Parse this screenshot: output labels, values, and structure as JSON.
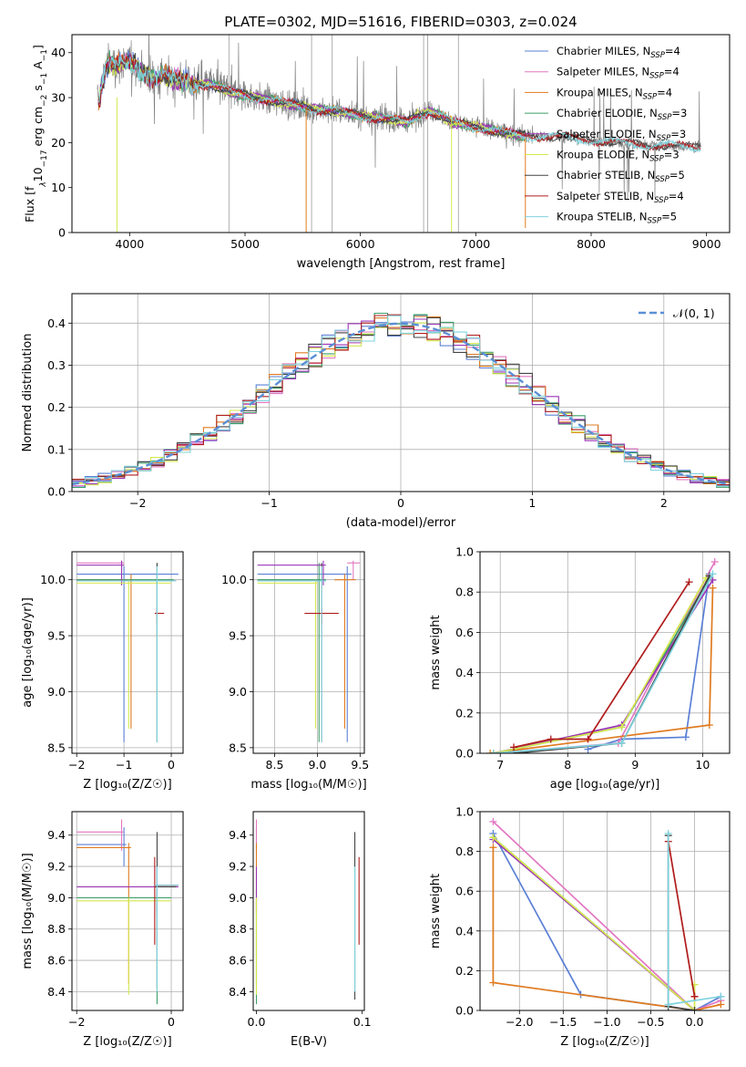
{
  "figure_title": "PLATE=0302, MJD=51616, FIBERID=0303, z=0.024",
  "colors": {
    "Chabrier MILES": "#5b80d6",
    "Salpeter MILES": "#e377c2",
    "Kroupa MILES": "#e07b20",
    "Chabrier ELODIE": "#3f9e6a",
    "Salpeter ELODIE": "#9a35b5",
    "Kroupa ELODIE": "#d4e84e",
    "Chabrier STELIB": "#444444",
    "Salpeter STELIB": "#b01c1c",
    "Kroupa STELIB": "#7ed3de",
    "data": "#808080",
    "normal": "#5b8fd6"
  },
  "chart_data": [
    {
      "id": "spectrum",
      "type": "line",
      "xlabel": "wavelength [Angstrom, rest frame]",
      "ylabel_parts": {
        "pre": "Flux [f",
        "sub1": "λ",
        "mid": "10",
        "sup1": "−17",
        "post1": " erg cm",
        "sup2": "−2",
        "post2": " s",
        "sup3": "−1",
        "post3": " A",
        "sup4": "−1",
        "end": "]"
      },
      "xlim": [
        3500,
        9200
      ],
      "ylim": [
        0,
        44
      ],
      "xticks": [
        4000,
        5000,
        6000,
        7000,
        8000,
        9000
      ],
      "yticks": [
        0,
        10,
        20,
        30,
        40
      ],
      "grid": false,
      "legend_position": "top-right",
      "legend": [
        {
          "model": "Chabrier MILES",
          "n": "4"
        },
        {
          "model": "Salpeter MILES",
          "n": "4"
        },
        {
          "model": "Kroupa MILES",
          "n": "4"
        },
        {
          "model": "Chabrier ELODIE",
          "n": "3"
        },
        {
          "model": "Salpeter ELODIE",
          "n": "3"
        },
        {
          "model": "Kroupa ELODIE",
          "n": "3"
        },
        {
          "model": "Chabrier STELIB",
          "n": "5"
        },
        {
          "model": "Salpeter STELIB",
          "n": "4"
        },
        {
          "model": "Kroupa STELIB",
          "n": "5"
        }
      ],
      "continuum": {
        "x": [
          3730,
          3800,
          3900,
          4000,
          4100,
          4200,
          4300,
          4400,
          4500,
          4600,
          4700,
          4800,
          4900,
          5000,
          5100,
          5200,
          5300,
          5400,
          5500,
          5600,
          5800,
          6000,
          6200,
          6400,
          6500,
          6600,
          6700,
          6800,
          6900,
          7000,
          7200,
          7400,
          7600,
          7800,
          8000,
          8200,
          8400,
          8600,
          8800,
          8950
        ],
        "y": [
          29,
          37.5,
          37.5,
          38,
          36,
          34,
          35,
          34,
          33.5,
          33,
          33,
          32,
          31,
          30.5,
          30,
          29.5,
          29,
          28.5,
          28,
          27.5,
          27,
          26,
          25.5,
          24.5,
          26,
          27,
          26,
          24.5,
          24,
          23.5,
          22.5,
          21.5,
          21.5,
          21,
          20.5,
          20,
          19.5,
          19.5,
          19,
          19
        ]
      }
    },
    {
      "id": "residuals",
      "type": "line",
      "xlabel": "(data-model)/error",
      "ylabel": "Normed distribution",
      "xlim": [
        -2.5,
        2.5
      ],
      "ylim": [
        0,
        0.47
      ],
      "xticks": [
        -2,
        -1,
        0,
        1,
        2
      ],
      "yticks": [
        0.0,
        0.1,
        0.2,
        0.3,
        0.4
      ],
      "grid": true,
      "legend_position": "top-right",
      "legend_label": "𝒩(0, 1)"
    },
    {
      "id": "age-vs-Z",
      "type": "scatter",
      "xlabel": "Z [log₁₀(Z/Z☉)]",
      "ylabel": "age  [log₁₀(age/yr)]",
      "xlim": [
        -2.1,
        0.25
      ],
      "ylim": [
        8.45,
        10.25
      ],
      "xticks": [
        -2,
        -1,
        0
      ],
      "yticks": [
        8.5,
        9.0,
        9.5,
        10.0
      ],
      "grid": true,
      "points": [
        {
          "m": "Chabrier MILES",
          "x": -1.0,
          "xlo": -2.0,
          "xhi": 0.15,
          "y": 10.05,
          "ylo": 8.55,
          "yhi": 10.12
        },
        {
          "m": "Salpeter MILES",
          "x": -1.05,
          "xlo": -2.0,
          "xhi": -1.0,
          "y": 10.15,
          "ylo": 10.0,
          "yhi": 10.17
        },
        {
          "m": "Kroupa MILES",
          "x": -0.85,
          "xlo": -2.0,
          "xhi": -0.8,
          "y": 10.0,
          "ylo": 8.67,
          "yhi": 10.05
        },
        {
          "m": "Chabrier ELODIE",
          "x": -0.3,
          "xlo": -2.0,
          "xhi": 0.05,
          "y": 10.0,
          "ylo": 8.55,
          "yhi": 10.15
        },
        {
          "m": "Salpeter ELODIE",
          "x": -1.05,
          "xlo": -2.0,
          "xhi": -1.0,
          "y": 10.13,
          "ylo": 9.95,
          "yhi": 10.17
        },
        {
          "m": "Kroupa ELODIE",
          "x": -0.9,
          "xlo": -2.0,
          "xhi": 0.0,
          "y": 9.97,
          "ylo": 8.67,
          "yhi": 10.0
        },
        {
          "m": "Chabrier STELIB",
          "x": -0.3,
          "xlo": -2.0,
          "xhi": 0.1,
          "y": 9.99,
          "ylo": 8.55,
          "yhi": 10.15
        },
        {
          "m": "Salpeter STELIB",
          "x": -0.3,
          "xlo": -0.35,
          "xhi": -0.15,
          "y": 9.7,
          "ylo": 9.6,
          "yhi": 9.75
        },
        {
          "m": "Kroupa STELIB",
          "x": -0.3,
          "xlo": -2.0,
          "xhi": 0.1,
          "y": 9.99,
          "ylo": 8.55,
          "yhi": 10.12
        }
      ]
    },
    {
      "id": "age-vs-mass",
      "type": "scatter",
      "xlabel": "mass [log₁₀(M/M☉)]",
      "ylabel": "",
      "xlim": [
        8.25,
        9.55
      ],
      "ylim": [
        8.45,
        10.25
      ],
      "xticks": [
        8.5,
        9.0,
        9.5
      ],
      "yticks": [
        8.5,
        9.0,
        9.5,
        10.0
      ],
      "grid": true,
      "points": [
        {
          "m": "Chabrier MILES",
          "x": 9.35,
          "xlo": 8.3,
          "xhi": 9.4,
          "y": 10.05,
          "ylo": 8.55,
          "yhi": 10.12
        },
        {
          "m": "Salpeter MILES",
          "x": 9.42,
          "xlo": 9.35,
          "xhi": 9.5,
          "y": 10.15,
          "ylo": 10.0,
          "yhi": 10.17
        },
        {
          "m": "Kroupa MILES",
          "x": 9.32,
          "xlo": 9.2,
          "xhi": 9.45,
          "y": 10.0,
          "ylo": 8.67,
          "yhi": 10.05
        },
        {
          "m": "Chabrier ELODIE",
          "x": 9.02,
          "xlo": 8.3,
          "xhi": 9.1,
          "y": 10.0,
          "ylo": 8.55,
          "yhi": 10.15
        },
        {
          "m": "Salpeter ELODIE",
          "x": 9.07,
          "xlo": 8.3,
          "xhi": 9.1,
          "y": 10.13,
          "ylo": 9.95,
          "yhi": 10.17
        },
        {
          "m": "Kroupa ELODIE",
          "x": 8.98,
          "xlo": 8.3,
          "xhi": 9.0,
          "y": 9.97,
          "ylo": 8.67,
          "yhi": 10.0
        },
        {
          "m": "Chabrier STELIB",
          "x": 9.05,
          "xlo": 8.3,
          "xhi": 9.1,
          "y": 9.99,
          "ylo": 8.55,
          "yhi": 10.15
        },
        {
          "m": "Salpeter STELIB",
          "x": 9.05,
          "xlo": 8.85,
          "xhi": 9.25,
          "y": 9.7,
          "ylo": 9.6,
          "yhi": 9.75
        },
        {
          "m": "Kroupa STELIB",
          "x": 9.05,
          "xlo": 8.3,
          "xhi": 9.1,
          "y": 9.99,
          "ylo": 8.55,
          "yhi": 10.12
        }
      ]
    },
    {
      "id": "weight-vs-age",
      "type": "line",
      "xlabel": "age  [log₁₀(age/yr)]",
      "ylabel": "mass weight",
      "xlim": [
        6.7,
        10.4
      ],
      "ylim": [
        0,
        1.0
      ],
      "xticks": [
        7,
        8,
        9,
        10
      ],
      "yticks": [
        0.0,
        0.2,
        0.4,
        0.6,
        0.8,
        1.0
      ],
      "grid": true,
      "series": [
        {
          "m": "Chabrier MILES",
          "x": [
            8.3,
            8.8,
            9.75,
            10.1
          ],
          "y": [
            0.02,
            0.07,
            0.08,
            0.89
          ]
        },
        {
          "m": "Salpeter MILES",
          "x": [
            6.9,
            8.75,
            10.18
          ],
          "y": [
            0.0,
            0.05,
            0.95
          ]
        },
        {
          "m": "Kroupa MILES",
          "x": [
            6.85,
            10.1,
            10.15
          ],
          "y": [
            0.0,
            0.14,
            0.82
          ]
        },
        {
          "m": "Chabrier ELODIE",
          "x": [
            6.9,
            8.8,
            10.1
          ],
          "y": [
            0.0,
            0.13,
            0.87
          ]
        },
        {
          "m": "Salpeter ELODIE",
          "x": [
            6.9,
            8.8,
            10.15
          ],
          "y": [
            0.0,
            0.14,
            0.86
          ]
        },
        {
          "m": "Kroupa ELODIE",
          "x": [
            6.9,
            8.8,
            10.05
          ],
          "y": [
            0.0,
            0.13,
            0.87
          ]
        },
        {
          "m": "Chabrier STELIB",
          "x": [
            7.2,
            8.8,
            10.1
          ],
          "y": [
            0.0,
            0.05,
            0.88
          ]
        },
        {
          "m": "Salpeter STELIB",
          "x": [
            7.2,
            7.75,
            8.3,
            9.8
          ],
          "y": [
            0.03,
            0.07,
            0.07,
            0.85
          ]
        },
        {
          "m": "Kroupa STELIB",
          "x": [
            6.9,
            8.8,
            10.15
          ],
          "y": [
            0.0,
            0.05,
            0.89
          ]
        }
      ]
    },
    {
      "id": "mass-vs-Z",
      "type": "scatter",
      "xlabel": "Z [log₁₀(Z/Z☉)]",
      "ylabel": "mass [log₁₀(M/M☉)]",
      "xlim": [
        -2.1,
        0.25
      ],
      "ylim": [
        8.28,
        9.55
      ],
      "xticks": [
        -2,
        0
      ],
      "yticks": [
        8.4,
        8.6,
        8.8,
        9.0,
        9.2,
        9.4
      ],
      "grid": true,
      "points": [
        {
          "m": "Chabrier MILES",
          "x": -1.0,
          "xlo": -2.0,
          "xhi": -0.95,
          "y": 9.34,
          "ylo": 9.2,
          "yhi": 9.45
        },
        {
          "m": "Salpeter MILES",
          "x": -1.05,
          "xlo": -2.0,
          "xhi": -1.0,
          "y": 9.42,
          "ylo": 9.3,
          "yhi": 9.5
        },
        {
          "m": "Kroupa MILES",
          "x": -0.9,
          "xlo": -2.0,
          "xhi": -0.85,
          "y": 9.32,
          "ylo": 8.45,
          "yhi": 9.35
        },
        {
          "m": "Chabrier ELODIE",
          "x": -0.3,
          "xlo": -2.0,
          "xhi": 0.0,
          "y": 9.0,
          "ylo": 8.32,
          "yhi": 9.05
        },
        {
          "m": "Salpeter ELODIE",
          "x": -0.3,
          "xlo": -2.0,
          "xhi": 0.15,
          "y": 9.07,
          "ylo": 8.9,
          "yhi": 9.2
        },
        {
          "m": "Kroupa ELODIE",
          "x": -0.9,
          "xlo": -2.0,
          "xhi": 0.0,
          "y": 8.98,
          "ylo": 8.38,
          "yhi": 9.0
        },
        {
          "m": "Chabrier STELIB",
          "x": -0.3,
          "xlo": -0.35,
          "xhi": 0.1,
          "y": 9.07,
          "ylo": 8.42,
          "yhi": 9.42
        },
        {
          "m": "Salpeter STELIB",
          "x": -0.35,
          "xlo": -0.35,
          "xhi": 0.15,
          "y": 9.08,
          "ylo": 8.7,
          "yhi": 9.26
        },
        {
          "m": "Kroupa STELIB",
          "x": -0.3,
          "xlo": -0.35,
          "xhi": 0.15,
          "y": 9.08,
          "ylo": 8.4,
          "yhi": 9.2
        }
      ]
    },
    {
      "id": "mass-vs-EBV",
      "type": "scatter",
      "xlabel": "E(B-V)",
      "ylabel": "",
      "xlim": [
        -0.003,
        0.102
      ],
      "ylim": [
        8.28,
        9.55
      ],
      "xticks": [
        0.0,
        0.1
      ],
      "yticks": [
        8.4,
        8.6,
        8.8,
        9.0,
        9.2,
        9.4
      ],
      "grid": false,
      "points": [
        {
          "m": "Chabrier MILES",
          "x": 0.0,
          "y": 9.34,
          "ylo": 9.2,
          "yhi": 9.45
        },
        {
          "m": "Salpeter MILES",
          "x": 0.0,
          "y": 9.42,
          "ylo": 9.3,
          "yhi": 9.5
        },
        {
          "m": "Kroupa MILES",
          "x": 0.0,
          "y": 9.32,
          "ylo": 8.45,
          "yhi": 9.35
        },
        {
          "m": "Chabrier ELODIE",
          "x": 0.0,
          "y": 9.0,
          "ylo": 8.32,
          "yhi": 9.05
        },
        {
          "m": "Salpeter ELODIE",
          "x": 0.0,
          "y": 9.07,
          "ylo": 8.9,
          "yhi": 9.2
        },
        {
          "m": "Kroupa ELODIE",
          "x": 0.0,
          "y": 8.98,
          "ylo": 8.38,
          "yhi": 9.0
        },
        {
          "m": "Chabrier STELIB",
          "x": 0.093,
          "y": 9.07,
          "ylo": 8.35,
          "yhi": 9.42
        },
        {
          "m": "Salpeter STELIB",
          "x": 0.097,
          "y": 9.08,
          "ylo": 8.7,
          "yhi": 9.26
        },
        {
          "m": "Kroupa STELIB",
          "x": 0.093,
          "y": 9.08,
          "ylo": 8.4,
          "yhi": 9.2
        }
      ]
    },
    {
      "id": "weight-vs-Z",
      "type": "line",
      "xlabel": "Z [log₁₀(Z/Z☉)]",
      "ylabel": "mass weight",
      "xlim": [
        -2.45,
        0.4
      ],
      "ylim": [
        0,
        1.0
      ],
      "xticks": [
        -2.0,
        -1.5,
        -1.0,
        -0.5,
        0.0
      ],
      "xticklabels": [
        "−2.0",
        "−1.5",
        "−1.0",
        "−0.5",
        "0.0"
      ],
      "yticks": [
        0.0,
        0.2,
        0.4,
        0.6,
        0.8,
        1.0
      ],
      "grid": true,
      "series": [
        {
          "m": "Chabrier MILES",
          "x": [
            -2.3,
            -1.3,
            0.0,
            0.3
          ],
          "y": [
            0.89,
            0.08,
            0.0,
            0.07
          ]
        },
        {
          "m": "Salpeter MILES",
          "x": [
            -2.3,
            0.0,
            0.3
          ],
          "y": [
            0.95,
            0.0,
            0.05
          ]
        },
        {
          "m": "Kroupa MILES",
          "x": [
            -2.3,
            -2.3,
            0.0,
            0.3
          ],
          "y": [
            0.82,
            0.14,
            0.0,
            0.03
          ]
        },
        {
          "m": "Chabrier ELODIE",
          "x": [
            -2.3,
            0.0
          ],
          "y": [
            0.87,
            0.0
          ]
        },
        {
          "m": "Salpeter ELODIE",
          "x": [
            -2.3,
            0.0
          ],
          "y": [
            0.86,
            0.0
          ]
        },
        {
          "m": "Kroupa ELODIE",
          "x": [
            -2.3,
            0.0,
            0.0
          ],
          "y": [
            0.87,
            0.0,
            0.13
          ]
        },
        {
          "m": "Chabrier STELIB",
          "x": [
            -0.3,
            -0.3,
            0.0
          ],
          "y": [
            0.88,
            0.02,
            0.0
          ]
        },
        {
          "m": "Salpeter STELIB",
          "x": [
            -0.3,
            0.0,
            0.0
          ],
          "y": [
            0.85,
            0.07,
            0.07
          ]
        },
        {
          "m": "Kroupa STELIB",
          "x": [
            -0.3,
            -0.3,
            0.3
          ],
          "y": [
            0.89,
            0.03,
            0.07
          ]
        }
      ]
    }
  ]
}
